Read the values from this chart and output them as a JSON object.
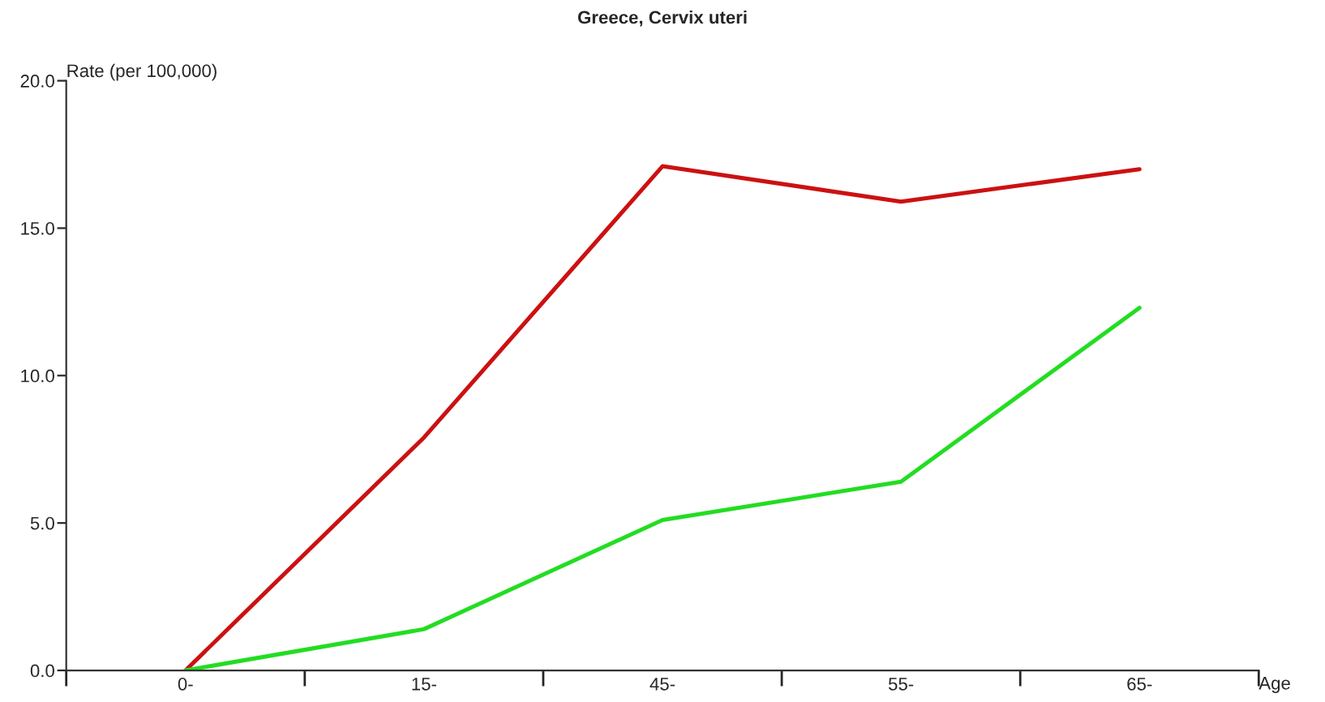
{
  "chart_data": {
    "type": "line",
    "title": "Greece, Cervix uteri",
    "xlabel": "Age",
    "ylabel": "Rate (per 100,000)",
    "categories": [
      "0-",
      "15-",
      "45-",
      "55-",
      "65-"
    ],
    "series": [
      {
        "color": "#cc1111",
        "values": [
          0,
          7.9,
          17.1,
          15.9,
          17.0
        ]
      },
      {
        "color": "#22dd22",
        "values": [
          0,
          1.4,
          5.1,
          6.4,
          12.3
        ]
      }
    ],
    "ylim": [
      0,
      20
    ],
    "yticks": [
      {
        "value": 0,
        "label": "0.0"
      },
      {
        "value": 5,
        "label": "5.0"
      },
      {
        "value": 10,
        "label": "10.0"
      },
      {
        "value": 15,
        "label": "15.0"
      },
      {
        "value": 20,
        "label": "20.0"
      }
    ],
    "grid": false,
    "marker": "none",
    "line_style": "solid"
  }
}
